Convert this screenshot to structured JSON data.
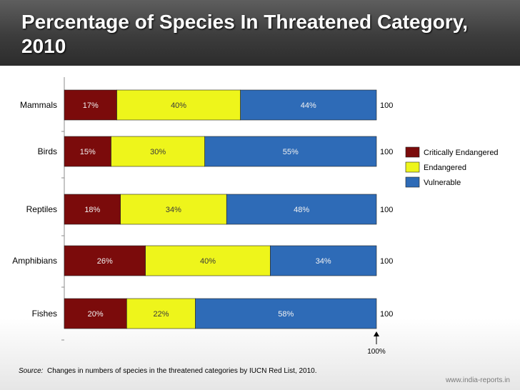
{
  "title": "Percentage of Species In Threatened Category, 2010",
  "source": {
    "label": "Source:",
    "text": "Changes in numbers of species in the threatened categories by IUCN Red List, 2010."
  },
  "site_credit": "www.india-reports.in",
  "colors": {
    "critically_endangered": "#7b0b0b",
    "endangered": "#eef51b",
    "vulnerable": "#2e6bb7"
  },
  "chart_data": {
    "type": "bar",
    "orientation": "horizontal",
    "stacked": true,
    "title": "Percentage of Species In Threatened Category, 2010",
    "categories": [
      "Mammals",
      "Birds",
      "Reptiles",
      "Amphibians",
      "Fishes"
    ],
    "series": [
      {
        "name": "Critically Endangered",
        "color": "#7b0b0b",
        "values": [
          17,
          15,
          18,
          26,
          20
        ],
        "labels": [
          "17%",
          "15%",
          "18%",
          "26%",
          "20%"
        ]
      },
      {
        "name": "Endangered",
        "color": "#eef51b",
        "values": [
          40,
          30,
          34,
          40,
          22
        ],
        "labels": [
          "40%",
          "30%",
          "34%",
          "40%",
          "22%"
        ]
      },
      {
        "name": "Vulnerable",
        "color": "#2e6bb7",
        "values": [
          44,
          55,
          48,
          34,
          58
        ],
        "labels": [
          "44%",
          "55%",
          "48%",
          "34%",
          "58%"
        ]
      }
    ],
    "totals": [
      "100",
      "100",
      "100",
      "100",
      "100"
    ],
    "xlim": [
      0,
      100
    ],
    "annotation": "100%",
    "legend": {
      "position": "right",
      "entries": [
        "Critically Endangered",
        "Endangered",
        "Vulnerable"
      ]
    }
  }
}
